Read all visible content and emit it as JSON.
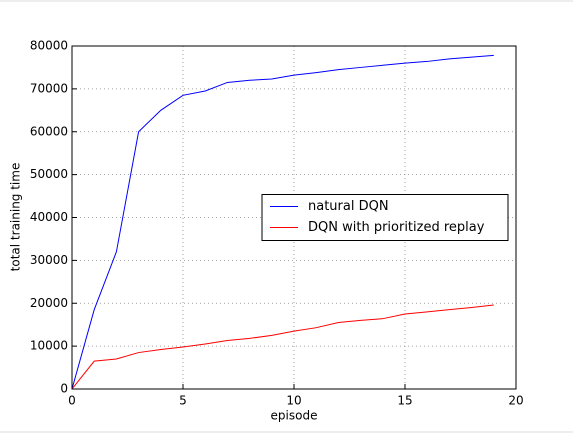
{
  "chart_data": {
    "type": "line",
    "x_label": "episode",
    "y_label": "total training time",
    "x": [
      0,
      1,
      2,
      3,
      4,
      5,
      6,
      7,
      8,
      9,
      10,
      11,
      12,
      13,
      14,
      15,
      16,
      17,
      18,
      19
    ],
    "series": [
      {
        "name": "natural DQN",
        "color": "#0000ff",
        "values": [
          0,
          18500,
          32000,
          60000,
          65000,
          68500,
          69500,
          71500,
          72000,
          72300,
          73200,
          73800,
          74500,
          75000,
          75500,
          76000,
          76400,
          77000,
          77400,
          77800
        ]
      },
      {
        "name": "DQN with prioritized replay",
        "color": "#ff0000",
        "values": [
          0,
          6500,
          7000,
          8500,
          9200,
          9800,
          10500,
          11300,
          11800,
          12500,
          13500,
          14300,
          15500,
          16000,
          16400,
          17500,
          18000,
          18500,
          19000,
          19600
        ]
      }
    ],
    "xlim": [
      0,
      20
    ],
    "xticks": [
      0,
      5,
      10,
      15,
      20
    ],
    "ylim": [
      0,
      80000
    ],
    "yticks": [
      0,
      10000,
      20000,
      30000,
      40000,
      50000,
      60000,
      70000,
      80000
    ],
    "grid": true,
    "legend": "center right"
  }
}
